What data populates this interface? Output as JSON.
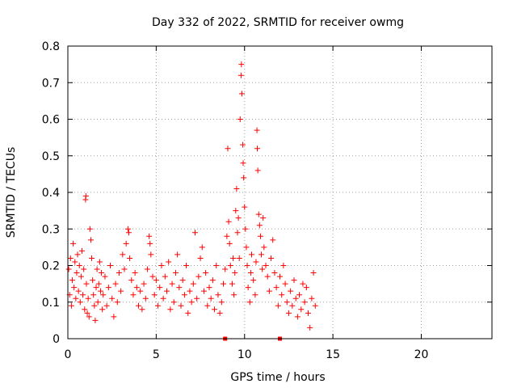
{
  "chart_data": {
    "type": "scatter",
    "title": "Day 332 of 2022, SRMTID for receiver owmg",
    "xlabel": "GPS time / hours",
    "ylabel": "SRMTID / TECUs",
    "xlim": [
      0,
      24
    ],
    "ylim": [
      0,
      0.8
    ],
    "xticks": [
      0,
      5,
      10,
      15,
      20
    ],
    "xtick_labels": [
      "0",
      "5",
      "10",
      "15",
      "20"
    ],
    "yticks": [
      0,
      0.1,
      0.2,
      0.3,
      0.4,
      0.5,
      0.6,
      0.7,
      0.8
    ],
    "ytick_labels": [
      "0",
      "0.1",
      "0.2",
      "0.3",
      "0.4",
      "0.5",
      "0.6",
      "0.7",
      "0.8"
    ],
    "grid": true,
    "marker": "plus",
    "color": "#ff0000",
    "series": [
      {
        "name": "SRMTID",
        "points": [
          [
            0.05,
            0.19
          ],
          [
            0.1,
            0.12
          ],
          [
            0.15,
            0.22
          ],
          [
            0.2,
            0.09
          ],
          [
            0.25,
            0.16
          ],
          [
            0.3,
            0.26
          ],
          [
            0.35,
            0.14
          ],
          [
            0.4,
            0.21
          ],
          [
            0.45,
            0.11
          ],
          [
            0.5,
            0.18
          ],
          [
            0.55,
            0.23
          ],
          [
            0.6,
            0.13
          ],
          [
            0.65,
            0.2
          ],
          [
            0.7,
            0.1
          ],
          [
            0.75,
            0.17
          ],
          [
            0.8,
            0.24
          ],
          [
            0.85,
            0.12
          ],
          [
            0.9,
            0.19
          ],
          [
            0.95,
            0.08
          ],
          [
            1.0,
            0.38
          ],
          [
            1.02,
            0.39
          ],
          [
            1.05,
            0.15
          ],
          [
            1.1,
            0.07
          ],
          [
            1.15,
            0.11
          ],
          [
            1.2,
            0.06
          ],
          [
            1.25,
            0.3
          ],
          [
            1.3,
            0.27
          ],
          [
            1.35,
            0.22
          ],
          [
            1.4,
            0.16
          ],
          [
            1.45,
            0.12
          ],
          [
            1.5,
            0.09
          ],
          [
            1.55,
            0.05
          ],
          [
            1.6,
            0.14
          ],
          [
            1.65,
            0.19
          ],
          [
            1.7,
            0.1
          ],
          [
            1.75,
            0.15
          ],
          [
            1.8,
            0.21
          ],
          [
            1.85,
            0.13
          ],
          [
            1.9,
            0.18
          ],
          [
            1.95,
            0.08
          ],
          [
            2.0,
            0.12
          ],
          [
            2.1,
            0.17
          ],
          [
            2.2,
            0.09
          ],
          [
            2.3,
            0.14
          ],
          [
            2.4,
            0.2
          ],
          [
            2.5,
            0.11
          ],
          [
            2.6,
            0.06
          ],
          [
            2.7,
            0.15
          ],
          [
            2.8,
            0.1
          ],
          [
            2.9,
            0.18
          ],
          [
            3.0,
            0.13
          ],
          [
            3.1,
            0.23
          ],
          [
            3.2,
            0.19
          ],
          [
            3.3,
            0.26
          ],
          [
            3.4,
            0.3
          ],
          [
            3.45,
            0.29
          ],
          [
            3.5,
            0.22
          ],
          [
            3.6,
            0.16
          ],
          [
            3.7,
            0.12
          ],
          [
            3.8,
            0.18
          ],
          [
            3.9,
            0.14
          ],
          [
            4.0,
            0.09
          ],
          [
            4.1,
            0.13
          ],
          [
            4.2,
            0.08
          ],
          [
            4.3,
            0.15
          ],
          [
            4.4,
            0.11
          ],
          [
            4.5,
            0.19
          ],
          [
            4.6,
            0.28
          ],
          [
            4.65,
            0.26
          ],
          [
            4.7,
            0.23
          ],
          [
            4.8,
            0.17
          ],
          [
            4.9,
            0.12
          ],
          [
            5.0,
            0.16
          ],
          [
            5.1,
            0.09
          ],
          [
            5.2,
            0.14
          ],
          [
            5.3,
            0.2
          ],
          [
            5.4,
            0.11
          ],
          [
            5.5,
            0.17
          ],
          [
            5.6,
            0.13
          ],
          [
            5.7,
            0.21
          ],
          [
            5.8,
            0.08
          ],
          [
            5.9,
            0.15
          ],
          [
            6.0,
            0.1
          ],
          [
            6.1,
            0.18
          ],
          [
            6.2,
            0.23
          ],
          [
            6.3,
            0.14
          ],
          [
            6.4,
            0.09
          ],
          [
            6.5,
            0.16
          ],
          [
            6.6,
            0.12
          ],
          [
            6.7,
            0.2
          ],
          [
            6.8,
            0.07
          ],
          [
            6.9,
            0.13
          ],
          [
            7.0,
            0.1
          ],
          [
            7.1,
            0.15
          ],
          [
            7.2,
            0.29
          ],
          [
            7.3,
            0.11
          ],
          [
            7.4,
            0.17
          ],
          [
            7.5,
            0.22
          ],
          [
            7.6,
            0.25
          ],
          [
            7.7,
            0.13
          ],
          [
            7.8,
            0.18
          ],
          [
            7.9,
            0.09
          ],
          [
            8.0,
            0.14
          ],
          [
            8.1,
            0.11
          ],
          [
            8.2,
            0.16
          ],
          [
            8.3,
            0.08
          ],
          [
            8.4,
            0.2
          ],
          [
            8.5,
            0.12
          ],
          [
            8.6,
            0.07
          ],
          [
            8.7,
            0.1
          ],
          [
            8.8,
            0.15
          ],
          [
            8.9,
            0.19
          ],
          [
            9.0,
            0.28
          ],
          [
            9.05,
            0.52
          ],
          [
            9.1,
            0.32
          ],
          [
            9.15,
            0.26
          ],
          [
            9.2,
            0.2
          ],
          [
            9.3,
            0.15
          ],
          [
            9.35,
            0.22
          ],
          [
            9.4,
            0.12
          ],
          [
            9.45,
            0.18
          ],
          [
            9.5,
            0.35
          ],
          [
            9.55,
            0.41
          ],
          [
            9.6,
            0.29
          ],
          [
            9.65,
            0.33
          ],
          [
            9.7,
            0.22
          ],
          [
            9.75,
            0.6
          ],
          [
            9.8,
            0.72
          ],
          [
            9.82,
            0.75
          ],
          [
            9.85,
            0.67
          ],
          [
            9.9,
            0.53
          ],
          [
            9.92,
            0.48
          ],
          [
            9.95,
            0.44
          ],
          [
            10.0,
            0.36
          ],
          [
            10.05,
            0.3
          ],
          [
            10.1,
            0.25
          ],
          [
            10.15,
            0.2
          ],
          [
            10.2,
            0.14
          ],
          [
            10.3,
            0.1
          ],
          [
            10.35,
            0.18
          ],
          [
            10.4,
            0.23
          ],
          [
            10.5,
            0.16
          ],
          [
            10.6,
            0.12
          ],
          [
            10.65,
            0.21
          ],
          [
            10.7,
            0.57
          ],
          [
            10.72,
            0.52
          ],
          [
            10.75,
            0.46
          ],
          [
            10.8,
            0.34
          ],
          [
            10.85,
            0.31
          ],
          [
            10.9,
            0.28
          ],
          [
            10.95,
            0.23
          ],
          [
            11.0,
            0.19
          ],
          [
            11.05,
            0.33
          ],
          [
            11.1,
            0.25
          ],
          [
            11.2,
            0.2
          ],
          [
            11.3,
            0.17
          ],
          [
            11.4,
            0.13
          ],
          [
            11.5,
            0.22
          ],
          [
            11.6,
            0.27
          ],
          [
            11.7,
            0.18
          ],
          [
            11.8,
            0.14
          ],
          [
            11.9,
            0.09
          ],
          [
            12.0,
            0.17
          ],
          [
            12.1,
            0.12
          ],
          [
            12.2,
            0.2
          ],
          [
            12.3,
            0.15
          ],
          [
            12.4,
            0.1
          ],
          [
            12.5,
            0.07
          ],
          [
            12.6,
            0.13
          ],
          [
            12.7,
            0.09
          ],
          [
            12.8,
            0.16
          ],
          [
            12.9,
            0.11
          ],
          [
            13.0,
            0.06
          ],
          [
            13.1,
            0.12
          ],
          [
            13.2,
            0.08
          ],
          [
            13.3,
            0.15
          ],
          [
            13.4,
            0.1
          ],
          [
            13.5,
            0.14
          ],
          [
            13.6,
            0.07
          ],
          [
            13.7,
            0.03
          ],
          [
            13.8,
            0.11
          ],
          [
            13.9,
            0.18
          ],
          [
            14.0,
            0.09
          ]
        ]
      }
    ],
    "zero_markers_x": [
      8.9,
      12.0
    ]
  }
}
